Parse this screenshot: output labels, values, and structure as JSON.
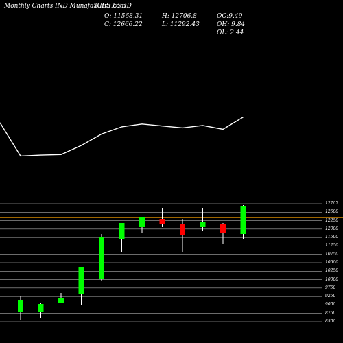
{
  "header": {
    "title": "Monthly Charts IND MunafaSutra.com",
    "symbol": "ICES U9DD",
    "open": "O: 11568.31",
    "high": "H: 12706.8",
    "oc": "OC:9.49",
    "close": "C: 12666.22",
    "low": "L: 11292.43",
    "oh": "OH: 9.84",
    "ol": "OL: 2.44"
  },
  "colors": {
    "background": "#000000",
    "text": "#ffffff",
    "line": "#ffffff",
    "grid": "#ffffff",
    "up": "#00ff00",
    "down": "#ff0000",
    "wick": "#ffffff",
    "price_line": "#ffa500"
  },
  "chart_data": {
    "type": "candlestick",
    "y_ticks": [
      "12707",
      "12500",
      "12250",
      "12000",
      "11500",
      "11250",
      "10750",
      "10500",
      "10250",
      "10000",
      "9750",
      "9250",
      "9000",
      "8750",
      "8500"
    ],
    "ylim": [
      8500,
      12800
    ],
    "current_price": 12300,
    "candles": [
      {
        "open": 8850,
        "close": 9300,
        "high": 9450,
        "low": 8550,
        "dir": "up"
      },
      {
        "open": 8850,
        "close": 9150,
        "high": 9200,
        "low": 8650,
        "dir": "up"
      },
      {
        "open": 9200,
        "close": 9350,
        "high": 9550,
        "low": 9200,
        "dir": "up"
      },
      {
        "open": 9500,
        "close": 10500,
        "high": 10500,
        "low": 9100,
        "dir": "up"
      },
      {
        "open": 10050,
        "close": 11600,
        "high": 11700,
        "low": 10000,
        "dir": "up"
      },
      {
        "open": 11500,
        "close": 12100,
        "high": 12100,
        "low": 11050,
        "dir": "up"
      },
      {
        "open": 11950,
        "close": 12300,
        "high": 12300,
        "low": 11750,
        "dir": "up"
      },
      {
        "open": 12250,
        "close": 12050,
        "high": 12650,
        "low": 11950,
        "dir": "down"
      },
      {
        "open": 12050,
        "close": 11650,
        "high": 12250,
        "low": 11050,
        "dir": "down"
      },
      {
        "open": 11950,
        "close": 12150,
        "high": 12650,
        "low": 11800,
        "dir": "up"
      },
      {
        "open": 12050,
        "close": 11750,
        "high": 12100,
        "low": 11350,
        "dir": "down"
      },
      {
        "open": 11700,
        "close": 12700,
        "high": 12750,
        "low": 11500,
        "dir": "up"
      }
    ],
    "indicator": [
      43.4,
      20.3,
      20.9,
      21.3,
      27.6,
      35.5,
      40.5,
      42.5,
      41.1,
      39.8,
      41.5,
      38.8,
      47.3
    ]
  }
}
